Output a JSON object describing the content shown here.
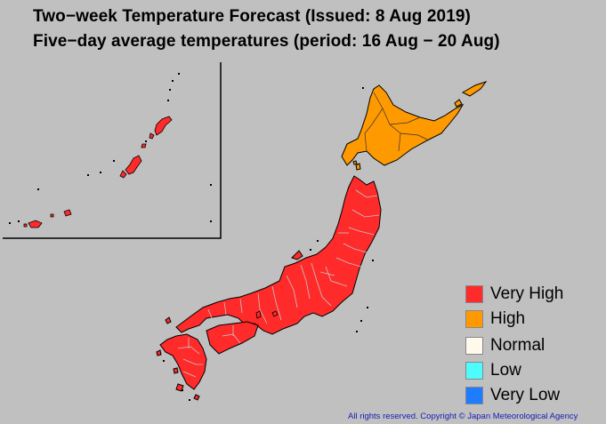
{
  "title": "Two−week Temperature Forecast (Issued: 8 Aug 2019)",
  "subtitle": "Five−day average temperatures (period: 16 Aug − 20 Aug)",
  "legend": [
    {
      "label": "Very High",
      "color": "#ff2a2a"
    },
    {
      "label": "High",
      "color": "#ff9900"
    },
    {
      "label": "Normal",
      "color": "#fffaec"
    },
    {
      "label": "Low",
      "color": "#4dfcfc"
    },
    {
      "label": "Very Low",
      "color": "#1e7dff"
    }
  ],
  "regions": [
    {
      "name": "Hokkaido",
      "category": "High"
    },
    {
      "name": "Tohoku",
      "category": "Very High"
    },
    {
      "name": "Kanto-Koshin",
      "category": "Very High"
    },
    {
      "name": "Hokuriku",
      "category": "Very High"
    },
    {
      "name": "Tokai",
      "category": "Very High"
    },
    {
      "name": "Kinki",
      "category": "Very High"
    },
    {
      "name": "Chugoku",
      "category": "Very High"
    },
    {
      "name": "Shikoku",
      "category": "Very High"
    },
    {
      "name": "Kyushu",
      "category": "Very High"
    },
    {
      "name": "Okinawa-Amami",
      "category": "Very High"
    }
  ],
  "copyright": "All rights reserved. Copyright © Japan Meteorological Agency"
}
